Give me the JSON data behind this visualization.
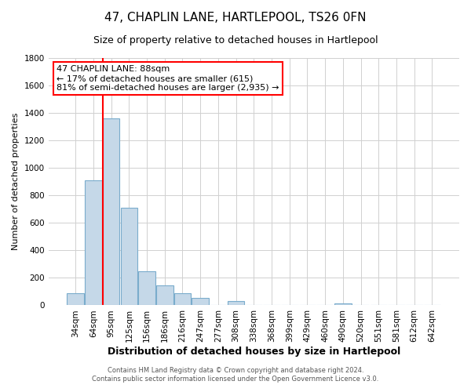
{
  "title": "47, CHAPLIN LANE, HARTLEPOOL, TS26 0FN",
  "subtitle": "Size of property relative to detached houses in Hartlepool",
  "xlabel": "Distribution of detached houses by size in Hartlepool",
  "ylabel": "Number of detached properties",
  "footer_line1": "Contains HM Land Registry data © Crown copyright and database right 2024.",
  "footer_line2": "Contains public sector information licensed under the Open Government Licence v3.0.",
  "bar_labels": [
    "34sqm",
    "64sqm",
    "95sqm",
    "125sqm",
    "156sqm",
    "186sqm",
    "216sqm",
    "247sqm",
    "277sqm",
    "308sqm",
    "338sqm",
    "368sqm",
    "399sqm",
    "429sqm",
    "460sqm",
    "490sqm",
    "520sqm",
    "551sqm",
    "581sqm",
    "612sqm",
    "642sqm"
  ],
  "bar_values": [
    90,
    910,
    1360,
    710,
    250,
    145,
    90,
    55,
    0,
    30,
    0,
    0,
    0,
    0,
    0,
    15,
    0,
    0,
    0,
    0,
    0
  ],
  "bar_color": "#c5d8e8",
  "bar_edge_color": "#7aaccc",
  "property_label": "47 CHAPLIN LANE: 88sqm",
  "annotation_line1": "← 17% of detached houses are smaller (615)",
  "annotation_line2": "81% of semi-detached houses are larger (2,935) →",
  "vline_color": "red",
  "vline_bar_index": 2,
  "ylim": [
    0,
    1800
  ],
  "yticks": [
    0,
    200,
    400,
    600,
    800,
    1000,
    1200,
    1400,
    1600,
    1800
  ],
  "background_color": "#ffffff",
  "grid_color": "#d0d0d0",
  "title_fontsize": 11,
  "subtitle_fontsize": 9,
  "xlabel_fontsize": 9,
  "ylabel_fontsize": 8,
  "tick_fontsize": 7.5,
  "annot_fontsize": 8
}
